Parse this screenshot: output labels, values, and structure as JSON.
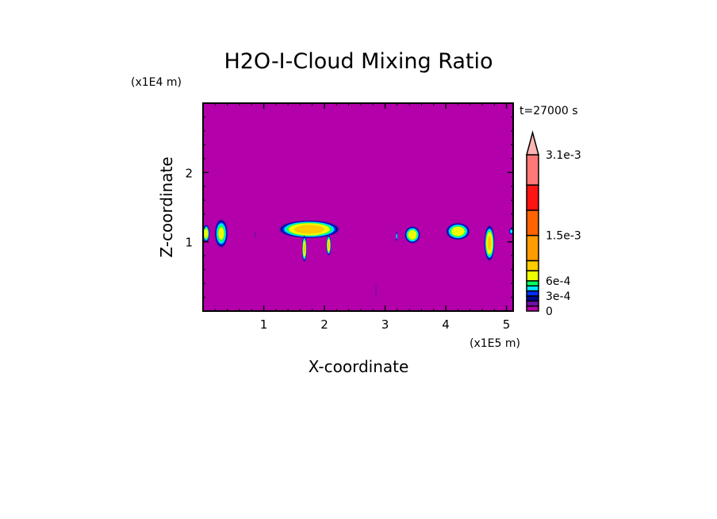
{
  "chart_data": {
    "type": "heatmap",
    "title": "H2O-I-Cloud Mixing Ratio",
    "xlabel": "X-coordinate",
    "ylabel": "Z-coordinate",
    "x_unit": "(x1E5 m)",
    "y_unit": "(x1E4 m)",
    "time_label": "t=27000 s",
    "xlim": [
      0,
      5.11
    ],
    "ylim": [
      0,
      3.0
    ],
    "x_ticks": [
      1,
      2,
      3,
      4,
      5
    ],
    "y_ticks": [
      1,
      2
    ],
    "x_tick_labels": [
      "1",
      "2",
      "3",
      "4",
      "5"
    ],
    "y_tick_labels": [
      "1",
      "2"
    ],
    "minor_tick_step": 0.2,
    "grid": false,
    "background_color": "#b400aa",
    "colorbar": {
      "levels": [
        0,
        0.0001,
        0.0002,
        0.0003,
        0.0004,
        0.0005,
        0.0006,
        0.0008,
        0.001,
        0.0015,
        0.002,
        0.0025,
        0.0031
      ],
      "colors": [
        "#b400aa",
        "#7010a8",
        "#00088c",
        "#0030ff",
        "#00e6ff",
        "#00ff64",
        "#f0ff00",
        "#ffcc00",
        "#ff9c00",
        "#ff6400",
        "#ff1414",
        "#ff7878"
      ],
      "extend_color": "#ffb4b4",
      "tick_values": [
        0,
        0.0003,
        0.0006,
        0.0015,
        0.0031
      ],
      "tick_labels": [
        "0",
        "3e-4",
        "6e-4",
        "1.5e-3",
        "3.1e-3"
      ],
      "extend": "max"
    },
    "cloud_features": [
      {
        "x": 0.05,
        "z": 1.12,
        "wx": 0.12,
        "wz": 0.26,
        "max": 0.0008
      },
      {
        "x": 0.3,
        "z": 1.12,
        "wx": 0.22,
        "wz": 0.42,
        "max": 0.0007
      },
      {
        "x": 1.75,
        "z": 1.18,
        "wx": 1.0,
        "wz": 0.26,
        "max": 0.001
      },
      {
        "x": 1.67,
        "z": 0.9,
        "wx": 0.08,
        "wz": 0.38,
        "max": 0.0009
      },
      {
        "x": 2.07,
        "z": 0.95,
        "wx": 0.08,
        "wz": 0.3,
        "max": 0.0009
      },
      {
        "x": 0.86,
        "z": 1.1,
        "wx": 0.02,
        "wz": 0.12,
        "max": 0.0002
      },
      {
        "x": 3.19,
        "z": 1.08,
        "wx": 0.03,
        "wz": 0.16,
        "max": 0.0005
      },
      {
        "x": 3.45,
        "z": 1.1,
        "wx": 0.26,
        "wz": 0.25,
        "max": 0.0008
      },
      {
        "x": 4.2,
        "z": 1.15,
        "wx": 0.4,
        "wz": 0.25,
        "max": 0.0008
      },
      {
        "x": 4.72,
        "z": 0.98,
        "wx": 0.17,
        "wz": 0.52,
        "max": 0.0009
      },
      {
        "x": 5.08,
        "z": 1.15,
        "wx": 0.08,
        "wz": 0.1,
        "max": 0.0005
      },
      {
        "x": 2.85,
        "z": 0.3,
        "wx": 0.02,
        "wz": 0.25,
        "max": 0.0002
      }
    ]
  }
}
